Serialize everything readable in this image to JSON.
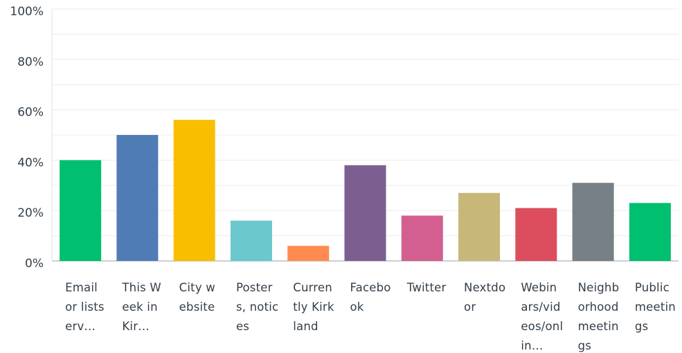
{
  "chart_data": {
    "type": "bar",
    "categories": [
      "Email or listserv…",
      "This Week in Kir…",
      "City website",
      "Posters, notices",
      "Currently Kirkland",
      "Facebook",
      "Twitter",
      "Nextdoor",
      "Webinars/videos/onlin…",
      "Neighborhood meetings",
      "Public meetings"
    ],
    "values": [
      40,
      50,
      56,
      16,
      6,
      38,
      18,
      27,
      21,
      31,
      23
    ],
    "colors": [
      "#00bf6f",
      "#507cb6",
      "#f9be00",
      "#6bc8cd",
      "#ff8b4f",
      "#7d5e90",
      "#d25f90",
      "#c7b879",
      "#dc4e5e",
      "#768086",
      "#00bf6f"
    ],
    "ylim": [
      0,
      100
    ],
    "yticks": [
      {
        "value": 0,
        "label": "0%"
      },
      {
        "value": 20,
        "label": "20%"
      },
      {
        "value": 40,
        "label": "40%"
      },
      {
        "value": 60,
        "label": "60%"
      },
      {
        "value": 80,
        "label": "80%"
      },
      {
        "value": 100,
        "label": "100%"
      }
    ],
    "grid": true,
    "grid_ticks": [
      10,
      30,
      50,
      70,
      90
    ]
  }
}
